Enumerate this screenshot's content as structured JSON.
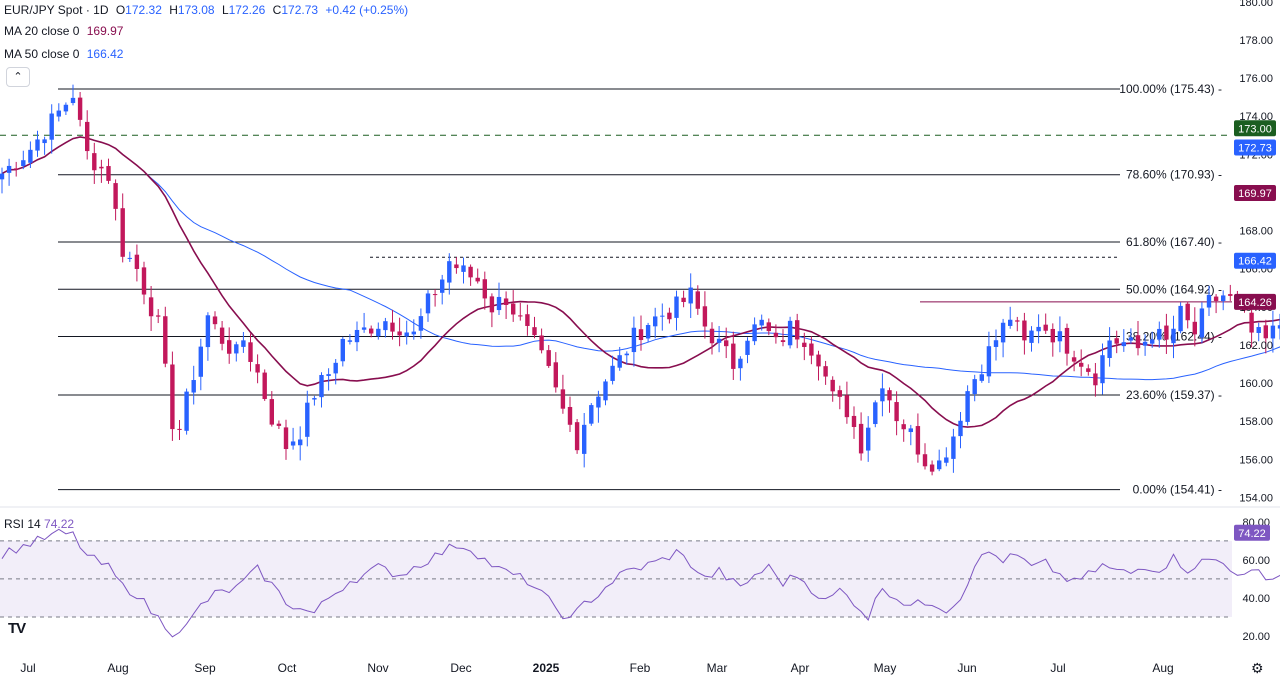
{
  "header": {
    "symbol": "EUR/JPY Spot · 1D",
    "open_label": "O",
    "open": "172.32",
    "high_label": "H",
    "high": "173.08",
    "low_label": "L",
    "low": "172.26",
    "close_label": "C",
    "close": "172.73",
    "change": "+0.42 (+0.25%)"
  },
  "ma20": {
    "label": "MA 20 close 0",
    "value": "169.97",
    "color": "#880e4f"
  },
  "ma50": {
    "label": "MA 50 close 0",
    "value": "166.42",
    "color": "#2962ff"
  },
  "rsi_legend": {
    "label": "RSI 14",
    "value": "74.22",
    "color": "#7e57c2"
  },
  "collapse_icon": "chevron-up-icon",
  "logo_text": "TV",
  "settings_icon": "gear-icon",
  "colors": {
    "up": "#2962ff",
    "down": "#c2185b",
    "dash": "#1b5e20"
  },
  "chart_data": {
    "type": "candlestick",
    "title": "EUR/JPY Spot · 1D",
    "y_axis": {
      "ticks": [
        154,
        156,
        158,
        160,
        162,
        164,
        166,
        168,
        170,
        172,
        174,
        176,
        178,
        180
      ],
      "range": [
        153.6,
        180.1
      ]
    },
    "x_axis": {
      "labels": [
        "Jul",
        "Aug",
        "Sep",
        "Oct",
        "Nov",
        "Dec",
        "2025",
        "Feb",
        "Mar",
        "Apr",
        "May",
        "Jun",
        "Jul",
        "Aug"
      ]
    },
    "fib_levels": [
      {
        "label": "100.00% (175.43)",
        "value": 175.43
      },
      {
        "label": "78.60% (170.93)",
        "value": 170.93
      },
      {
        "label": "61.80% (167.40)",
        "value": 167.4
      },
      {
        "label": "50.00% (164.92)",
        "value": 164.92
      },
      {
        "label": "38.20% (162.44)",
        "value": 162.44
      },
      {
        "label": "23.60% (159.37)",
        "value": 159.37
      },
      {
        "label": "0.00% (154.41)",
        "value": 154.41
      }
    ],
    "price_badges": [
      {
        "value": 173.0,
        "label": "173.00",
        "color": "#1b5e20"
      },
      {
        "value": 172.73,
        "label": "172.73",
        "color": "#2962ff"
      },
      {
        "value": 169.97,
        "label": "169.97",
        "color": "#880e4f"
      },
      {
        "value": 166.42,
        "label": "166.42",
        "color": "#2962ff"
      },
      {
        "value": 164.26,
        "label": "164.26",
        "color": "#880e4f"
      }
    ],
    "dashed_price_line": 173.0,
    "resistance_dotted": 166.6,
    "horizontal_red": 164.26,
    "close_path": [
      [
        0,
        171.0
      ],
      [
        4,
        172.3
      ],
      [
        8,
        174.2
      ],
      [
        10,
        175.2
      ],
      [
        11,
        173.5
      ],
      [
        12,
        172.0
      ],
      [
        15,
        170.9
      ],
      [
        17,
        167.0
      ],
      [
        19,
        166.0
      ],
      [
        22,
        163.0
      ],
      [
        24,
        158.0
      ],
      [
        25,
        157.6
      ],
      [
        27,
        160.5
      ],
      [
        29,
        163.5
      ],
      [
        31,
        162.3
      ],
      [
        33,
        161.5
      ],
      [
        34,
        162.3
      ],
      [
        36,
        160.5
      ],
      [
        38,
        158.2
      ],
      [
        40,
        156.7
      ],
      [
        42,
        157.5
      ],
      [
        44,
        159.5
      ],
      [
        46,
        160.5
      ],
      [
        48,
        162.2
      ],
      [
        50,
        162.5
      ],
      [
        52,
        163.0
      ],
      [
        54,
        163.3
      ],
      [
        56,
        163.0
      ],
      [
        58,
        162.5
      ],
      [
        60,
        164.2
      ],
      [
        62,
        165.5
      ],
      [
        63,
        166.4
      ],
      [
        65,
        165.8
      ],
      [
        67,
        165.4
      ],
      [
        69,
        164.0
      ],
      [
        71,
        164.5
      ],
      [
        73,
        163.2
      ],
      [
        75,
        162.0
      ],
      [
        77,
        160.5
      ],
      [
        79,
        158.5
      ],
      [
        81,
        157.0
      ],
      [
        83,
        159.0
      ],
      [
        85,
        160.2
      ],
      [
        87,
        161.2
      ],
      [
        89,
        162.4
      ],
      [
        91,
        163.2
      ],
      [
        93,
        163.6
      ],
      [
        95,
        164.0
      ],
      [
        97,
        164.6
      ],
      [
        99,
        163.0
      ],
      [
        101,
        162.0
      ],
      [
        103,
        161.0
      ],
      [
        105,
        162.6
      ],
      [
        107,
        163.1
      ],
      [
        109,
        162.0
      ],
      [
        111,
        162.9
      ],
      [
        113,
        162.4
      ],
      [
        115,
        161.4
      ],
      [
        117,
        159.2
      ],
      [
        119,
        158.6
      ],
      [
        121,
        156.8
      ],
      [
        123,
        159.0
      ],
      [
        124,
        160.2
      ],
      [
        126,
        158.3
      ],
      [
        128,
        157.3
      ],
      [
        130,
        156.0
      ],
      [
        132,
        155.8
      ],
      [
        134,
        157.3
      ],
      [
        136,
        159.6
      ],
      [
        138,
        161.0
      ],
      [
        140,
        162.3
      ],
      [
        142,
        163.5
      ],
      [
        144,
        162.0
      ],
      [
        146,
        163.2
      ],
      [
        148,
        162.6
      ],
      [
        150,
        162.0
      ],
      [
        152,
        161.2
      ],
      [
        154,
        160.4
      ],
      [
        156,
        162.3
      ],
      [
        158,
        162.1
      ],
      [
        160,
        161.8
      ],
      [
        162,
        162.7
      ],
      [
        164,
        162.1
      ],
      [
        166,
        163.6
      ],
      [
        168,
        162.6
      ],
      [
        170,
        164.2
      ],
      [
        172,
        164.6
      ],
      [
        174,
        164.1
      ],
      [
        176,
        162.6
      ],
      [
        178,
        162.2
      ],
      [
        180,
        163.1
      ],
      [
        182,
        163.4
      ],
      [
        184,
        163.9
      ],
      [
        186,
        164.6
      ],
      [
        188,
        166.1
      ],
      [
        190,
        166.6
      ],
      [
        192,
        167.6
      ],
      [
        194,
        168.7
      ],
      [
        196,
        168.6
      ],
      [
        198,
        169.1
      ],
      [
        200,
        169.6
      ],
      [
        202,
        170.1
      ],
      [
        204,
        171.1
      ],
      [
        206,
        171.6
      ],
      [
        208,
        171.2
      ],
      [
        210,
        172.3
      ],
      [
        211,
        172.73
      ]
    ],
    "rsi_axis": {
      "ticks": [
        20,
        40,
        60,
        80
      ],
      "bands": [
        30,
        50,
        70
      ]
    },
    "rsi_path": [
      [
        0,
        63
      ],
      [
        5,
        70
      ],
      [
        8,
        74
      ],
      [
        10,
        73
      ],
      [
        12,
        62
      ],
      [
        15,
        56
      ],
      [
        17,
        46
      ],
      [
        19,
        42
      ],
      [
        21,
        33
      ],
      [
        24,
        22
      ],
      [
        26,
        25
      ],
      [
        28,
        36
      ],
      [
        30,
        42
      ],
      [
        33,
        45
      ],
      [
        36,
        55
      ],
      [
        38,
        47
      ],
      [
        40,
        38
      ],
      [
        42,
        34
      ],
      [
        44,
        32
      ],
      [
        46,
        40
      ],
      [
        49,
        49
      ],
      [
        51,
        52
      ],
      [
        53,
        56
      ],
      [
        56,
        52
      ],
      [
        59,
        58
      ],
      [
        62,
        64
      ],
      [
        64,
        68
      ],
      [
        66,
        66
      ],
      [
        68,
        60
      ],
      [
        70,
        55
      ],
      [
        72,
        52
      ],
      [
        74,
        49
      ],
      [
        76,
        42
      ],
      [
        78,
        35
      ],
      [
        80,
        28
      ],
      [
        82,
        37
      ],
      [
        84,
        42
      ],
      [
        86,
        49
      ],
      [
        88,
        54
      ],
      [
        90,
        56
      ],
      [
        93,
        60
      ],
      [
        95,
        64
      ],
      [
        97,
        58
      ],
      [
        99,
        50
      ],
      [
        101,
        54
      ],
      [
        104,
        45
      ],
      [
        106,
        52
      ],
      [
        108,
        56
      ],
      [
        110,
        48
      ],
      [
        112,
        52
      ],
      [
        114,
        45
      ],
      [
        116,
        38
      ],
      [
        118,
        44
      ],
      [
        120,
        38
      ],
      [
        122,
        30
      ],
      [
        124,
        46
      ],
      [
        126,
        40
      ],
      [
        128,
        36
      ],
      [
        131,
        38
      ],
      [
        133,
        34
      ],
      [
        135,
        40
      ],
      [
        137,
        58
      ],
      [
        139,
        64
      ],
      [
        141,
        60
      ],
      [
        143,
        62
      ],
      [
        145,
        56
      ],
      [
        147,
        58
      ],
      [
        149,
        52
      ],
      [
        151,
        48
      ],
      [
        153,
        52
      ],
      [
        155,
        57
      ],
      [
        157,
        54
      ],
      [
        159,
        53
      ],
      [
        161,
        57
      ],
      [
        163,
        55
      ],
      [
        165,
        61
      ],
      [
        167,
        55
      ],
      [
        169,
        59
      ],
      [
        171,
        60
      ],
      [
        173,
        56
      ],
      [
        175,
        51
      ],
      [
        177,
        54
      ],
      [
        179,
        50
      ],
      [
        181,
        55
      ],
      [
        183,
        62
      ],
      [
        185,
        64
      ],
      [
        187,
        67
      ],
      [
        189,
        68
      ],
      [
        191,
        70
      ],
      [
        193,
        72
      ],
      [
        195,
        68
      ],
      [
        197,
        70
      ],
      [
        199,
        71
      ],
      [
        201,
        73
      ],
      [
        203,
        72
      ],
      [
        205,
        74
      ],
      [
        207,
        70
      ],
      [
        209,
        73
      ],
      [
        211,
        74.22
      ]
    ]
  }
}
